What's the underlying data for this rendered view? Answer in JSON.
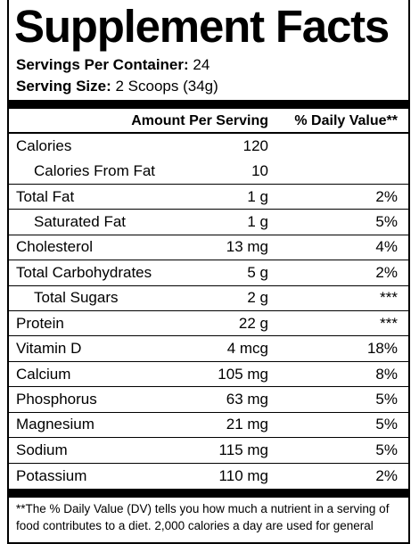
{
  "header": {
    "title": "Supplement Facts",
    "servings_label": "Servings Per Container:",
    "servings_value": "24",
    "size_label": "Serving Size:",
    "size_value": "2 Scoops (34g)"
  },
  "table": {
    "columns": [
      "Amount Per Serving",
      "% Daily Value**"
    ],
    "rows": [
      {
        "name": "Calories",
        "amount": "120"
      },
      {
        "name": "Calories From Fat",
        "amount": "10"
      },
      {
        "name": "Total Fat",
        "amount": "1 g",
        "dv": "2%"
      },
      {
        "name": "Saturated Fat",
        "amount": "1 g",
        "dv": "5%"
      },
      {
        "name": "Cholesterol",
        "amount": "13 mg",
        "dv": "4%"
      },
      {
        "name": "Total Carbohydrates",
        "amount": "5 g",
        "dv": "2%"
      },
      {
        "name": "Total Sugars",
        "amount": "2 g",
        "dv": "***"
      },
      {
        "name": "Protein",
        "amount": "22 g",
        "dv": "***"
      },
      {
        "name": "Vitamin D",
        "amount": "4 mcg",
        "dv": "18%"
      },
      {
        "name": "Calcium",
        "amount": "105 mg",
        "dv": "8%"
      },
      {
        "name": "Phosphorus",
        "amount": "63 mg",
        "dv": "5%"
      },
      {
        "name": "Magnesium",
        "amount": "21 mg",
        "dv": "5%"
      },
      {
        "name": "Sodium",
        "amount": "115 mg",
        "dv": "5%"
      },
      {
        "name": "Potassium",
        "amount": "110 mg",
        "dv": "2%"
      }
    ]
  },
  "footnote": "**The % Daily Value (DV) tells you how much a nutrient in a serving of food contributes to a diet. 2,000 calories a day are used for general"
}
